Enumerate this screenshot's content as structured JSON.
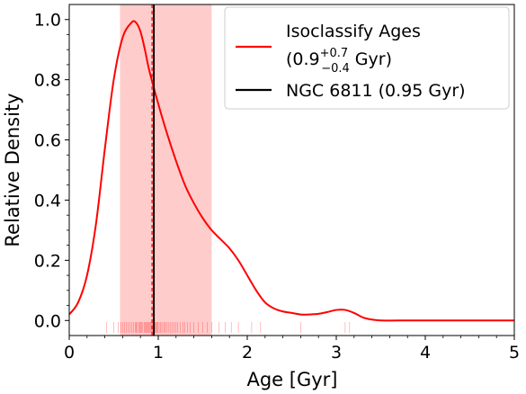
{
  "chart_data": {
    "type": "line",
    "xlabel": "Age [Gyr]",
    "ylabel": "Relative Density",
    "xlim": [
      0,
      5
    ],
    "ylim": [
      -0.05,
      1.05
    ],
    "xticks": [
      "0",
      "1",
      "2",
      "3",
      "4",
      "5"
    ],
    "yticks": [
      "0.0",
      "0.2",
      "0.4",
      "0.6",
      "0.8",
      "1.0"
    ],
    "grid": false,
    "legend_position": "top-right",
    "series": [
      {
        "name": "Isoclassify Ages",
        "name_detail": "(0.9",
        "name_sup": "+0.7",
        "name_sub": "−0.4",
        "name_unit": "Gyr)",
        "color": "#ff0000",
        "x": [
          0.0,
          0.1,
          0.2,
          0.3,
          0.4,
          0.5,
          0.6,
          0.7,
          0.75,
          0.8,
          0.85,
          0.9,
          1.0,
          1.1,
          1.2,
          1.3,
          1.4,
          1.5,
          1.6,
          1.7,
          1.8,
          1.9,
          2.0,
          2.1,
          2.2,
          2.3,
          2.4,
          2.5,
          2.6,
          2.7,
          2.8,
          2.9,
          3.0,
          3.1,
          3.2,
          3.3,
          3.4,
          3.5,
          3.7,
          4.0,
          4.5,
          5.0
        ],
        "y": [
          0.02,
          0.06,
          0.15,
          0.32,
          0.57,
          0.8,
          0.94,
          0.99,
          0.99,
          0.96,
          0.9,
          0.83,
          0.72,
          0.62,
          0.53,
          0.45,
          0.39,
          0.34,
          0.3,
          0.27,
          0.24,
          0.2,
          0.15,
          0.1,
          0.06,
          0.04,
          0.03,
          0.025,
          0.02,
          0.02,
          0.022,
          0.028,
          0.035,
          0.035,
          0.025,
          0.01,
          0.003,
          0.0,
          0.0,
          0.0,
          0.0,
          0.0
        ]
      },
      {
        "name": "NGC 6811 (0.95 Gyr)",
        "color": "#000000",
        "vline": 0.95
      }
    ],
    "shaded_band": {
      "x": [
        0.57,
        1.6
      ],
      "color": "#ff0000",
      "opacity": 0.2
    },
    "dashed_vline": {
      "x": 0.93,
      "color": "#ff0000"
    },
    "rug": [
      0.42,
      0.5,
      0.55,
      0.58,
      0.6,
      0.62,
      0.64,
      0.66,
      0.68,
      0.7,
      0.72,
      0.74,
      0.75,
      0.76,
      0.78,
      0.79,
      0.8,
      0.81,
      0.82,
      0.84,
      0.85,
      0.86,
      0.87,
      0.88,
      0.89,
      0.9,
      0.91,
      0.92,
      0.93,
      0.94,
      0.96,
      0.97,
      0.98,
      0.99,
      1.0,
      1.02,
      1.03,
      1.05,
      1.07,
      1.08,
      1.1,
      1.12,
      1.14,
      1.16,
      1.18,
      1.2,
      1.22,
      1.25,
      1.28,
      1.3,
      1.33,
      1.36,
      1.4,
      1.45,
      1.5,
      1.55,
      1.6,
      1.68,
      1.75,
      1.82,
      1.9,
      2.05,
      2.15,
      2.6,
      3.1,
      3.15
    ]
  }
}
